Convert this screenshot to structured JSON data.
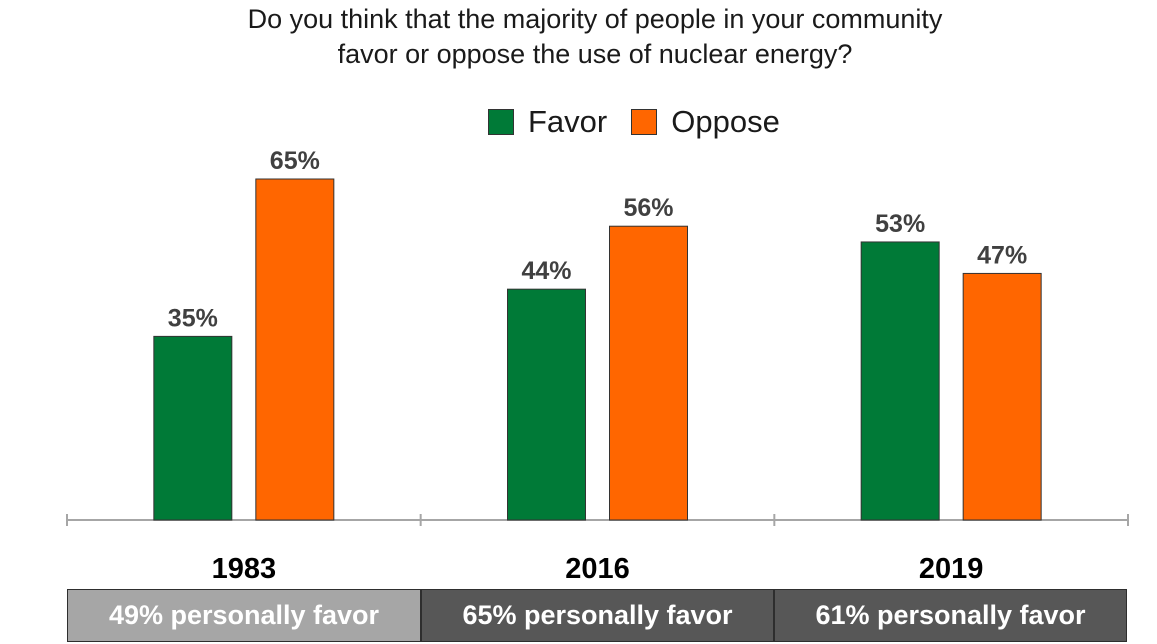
{
  "chart_data": {
    "type": "bar",
    "title": "Do you think that the majority of people in your community favor or oppose the use of nuclear energy?",
    "title_lines": [
      "Do you think that the majority of people in your community",
      "favor or oppose the use of nuclear energy?"
    ],
    "categories": [
      "1983",
      "2016",
      "2019"
    ],
    "series": [
      {
        "name": "Favor",
        "color": "#007a37",
        "values": [
          35,
          44,
          53
        ],
        "labels": [
          "35%",
          "44%",
          "53%"
        ]
      },
      {
        "name": "Oppose",
        "color": "#ff6600",
        "values": [
          65,
          56,
          47
        ],
        "labels": [
          "65%",
          "56%",
          "47%"
        ]
      }
    ],
    "ylim": [
      0,
      100
    ],
    "grid": false,
    "legend_position": "top",
    "xlabel": "",
    "ylabel": ""
  },
  "footer": {
    "cells": [
      {
        "label": "49% personally favor",
        "color": "#a6a6a6"
      },
      {
        "label": "65% personally favor",
        "color": "#575757"
      },
      {
        "label": "61% personally favor",
        "color": "#575757"
      }
    ]
  }
}
